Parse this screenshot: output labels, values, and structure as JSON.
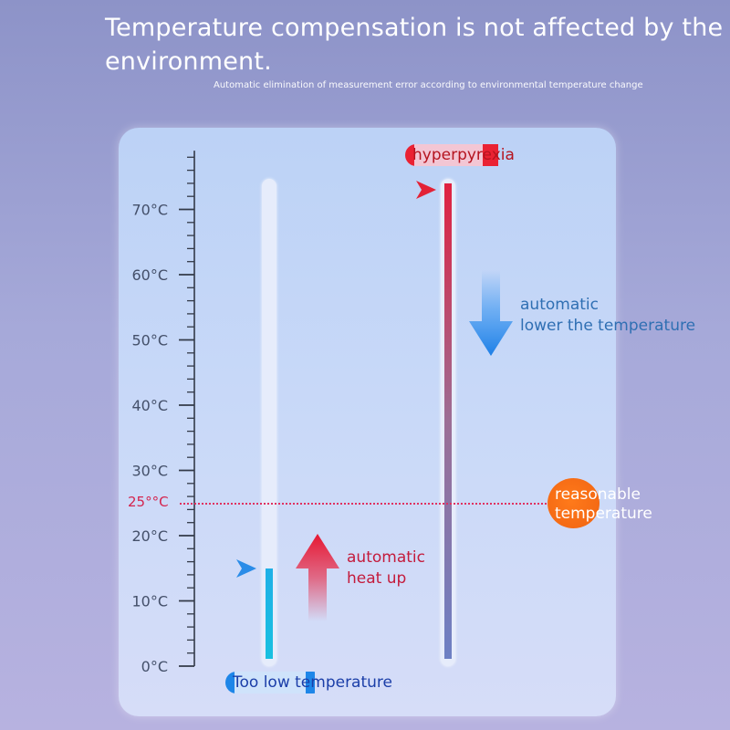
{
  "header": {
    "title": "Temperature compensation is not affected by the environment.",
    "subtitle": "Automatic elimination of measurement error according to environmental temperature change"
  },
  "scale": {
    "labels": [
      "70°C",
      "60°C",
      "50°C",
      "40°C",
      "30°C",
      "20°C",
      "10°C",
      "0°C"
    ],
    "reference_label": "25°°C"
  },
  "thermometers": {
    "cold": {
      "level_celsius": 15,
      "label": "Too low temperature"
    },
    "hot": {
      "level_celsius": 74,
      "label": "hyperpyrexia"
    }
  },
  "annotations": {
    "cool_down": "automatic\nlower the temperature",
    "heat_up": "automatic\nheat up",
    "reasonable": "reasonable\ntemperature"
  },
  "colors": {
    "cold_fill": "#1fb0e6",
    "hot_top": "#e0213f",
    "hot_bottom": "#6d80c4",
    "reference_line": "#e03060",
    "reasonable_dot": "#f06312"
  },
  "icons": {
    "cold_pointer": "blue-triangle-arrow-icon",
    "hot_pointer": "red-triangle-arrow-icon",
    "down_arrow": "blue-down-arrow-icon",
    "up_arrow": "red-up-arrow-icon"
  }
}
